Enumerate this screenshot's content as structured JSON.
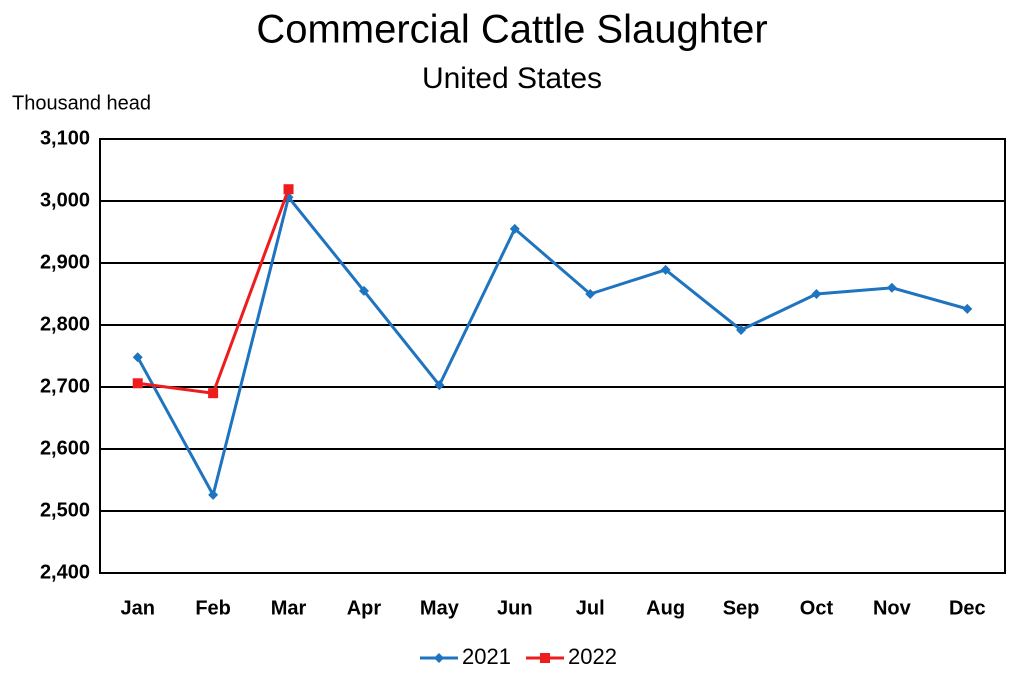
{
  "chart_data": {
    "type": "line",
    "title": "Commercial Cattle Slaughter",
    "subtitle": "United States",
    "y_label": "Thousand head",
    "categories": [
      "Jan",
      "Feb",
      "Mar",
      "Apr",
      "May",
      "Jun",
      "Jul",
      "Aug",
      "Sep",
      "Oct",
      "Nov",
      "Dec"
    ],
    "series": [
      {
        "name": "2021",
        "color": "#1f74c0",
        "marker": "diamond",
        "values": [
          2748,
          2526,
          3006,
          2855,
          2703,
          2955,
          2850,
          2889,
          2792,
          2850,
          2860,
          2826
        ]
      },
      {
        "name": "2022",
        "color": "#ee1c1c",
        "marker": "square",
        "values": [
          2706,
          2690,
          3019,
          null,
          null,
          null,
          null,
          null,
          null,
          null,
          null,
          null
        ]
      }
    ],
    "ylim": [
      2400,
      3100
    ],
    "yticks": [
      {
        "value": 2400,
        "label": "2,400"
      },
      {
        "value": 2500,
        "label": "2,500"
      },
      {
        "value": 2600,
        "label": "2,600"
      },
      {
        "value": 2700,
        "label": "2,700"
      },
      {
        "value": 2800,
        "label": "2,800"
      },
      {
        "value": 2900,
        "label": "2,900"
      },
      {
        "value": 3000,
        "label": "3,000"
      },
      {
        "value": 3100,
        "label": "3,100"
      }
    ],
    "grid": true,
    "legend": "bottom"
  }
}
